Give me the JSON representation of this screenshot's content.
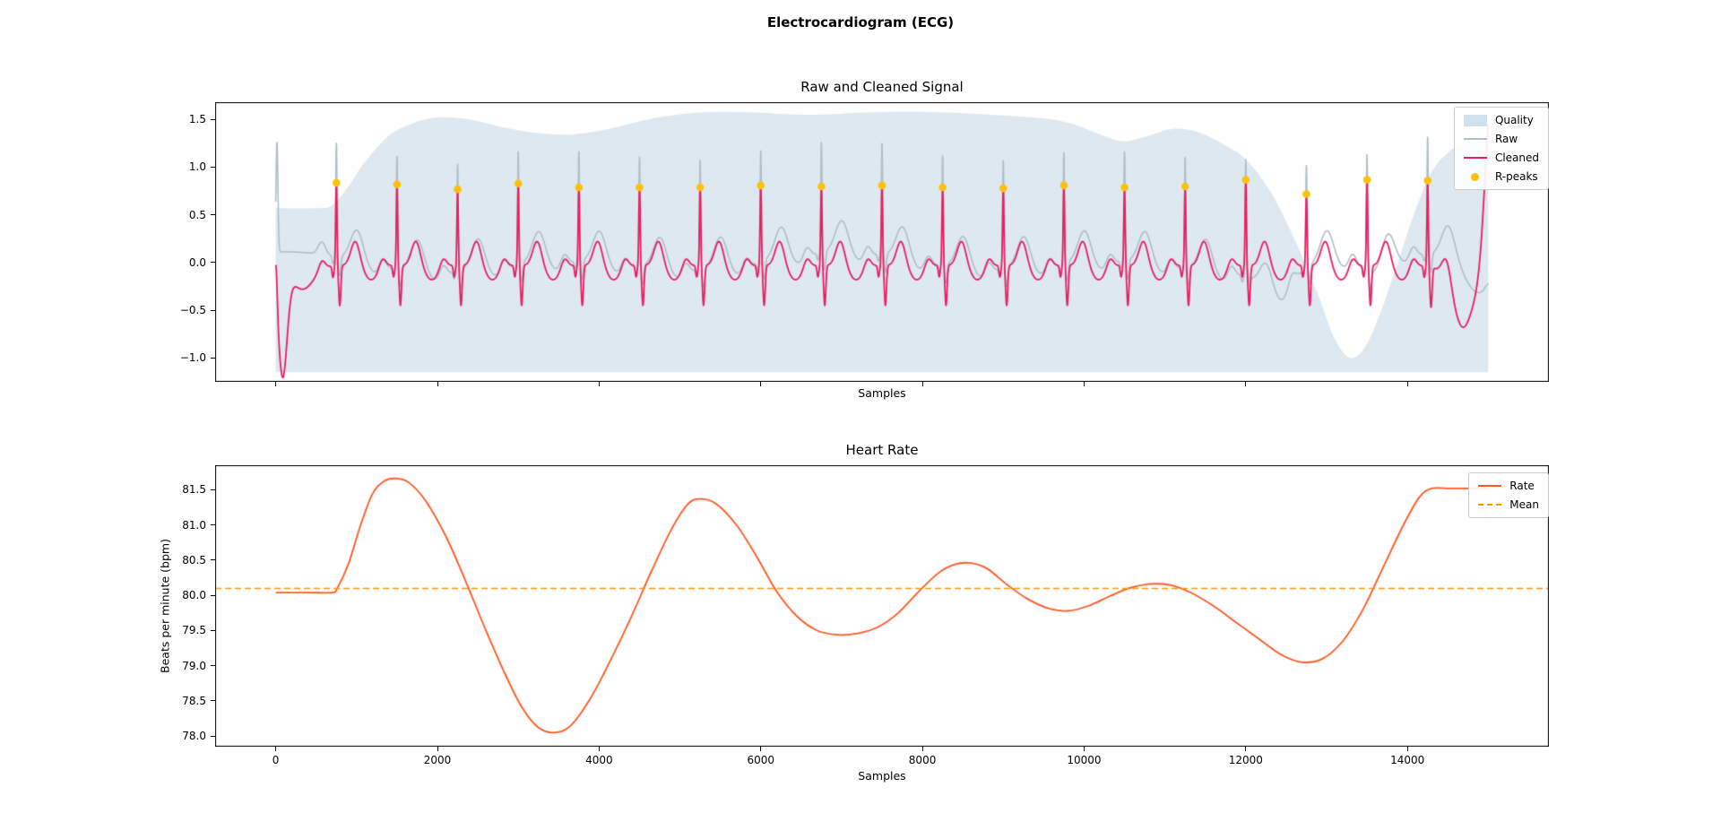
{
  "figure": {
    "suptitle": "Electrocardiogram (ECG)",
    "background_color": "#ffffff"
  },
  "chart_data": [
    {
      "type": "line",
      "title": "Raw and Cleaned Signal",
      "xlabel": "Samples",
      "ylabel": "",
      "xlim": [
        -750,
        15750
      ],
      "ylim": [
        -1.25,
        1.68
      ],
      "yticks": [
        1.5,
        1.0,
        0.5,
        0.0,
        -0.5,
        -1.0
      ],
      "ytick_labels": [
        "1.5",
        "1.0",
        "0.5",
        "0.0",
        "−0.5",
        "−1.0"
      ],
      "xticks": [
        0,
        2000,
        4000,
        6000,
        8000,
        10000,
        12000,
        14000
      ],
      "show_xtick_labels": false,
      "grid": false,
      "legend_position": "upper right",
      "legend": [
        {
          "label": "Quality",
          "type": "patch",
          "color": "rgba(70,130,180,0.25)"
        },
        {
          "label": "Raw",
          "type": "line",
          "color": "#B0BEC5"
        },
        {
          "label": "Cleaned",
          "type": "line",
          "color": "#E91E63"
        },
        {
          "label": "R-peaks",
          "type": "marker",
          "color": "#FFC107"
        }
      ],
      "colors": {
        "raw": "#B0BEC5",
        "cleaned": "#E91E63",
        "rpeaks": "#FFC107"
      },
      "quality": {
        "fill_color": "rgba(70,130,180,0.18)",
        "fill_bottom": -1.15,
        "x": [
          0,
          500,
          700,
          900,
          1100,
          1400,
          1700,
          2000,
          2400,
          2800,
          3200,
          3600,
          4000,
          4400,
          4800,
          5200,
          5600,
          6000,
          6400,
          6800,
          7200,
          7600,
          8000,
          8400,
          8800,
          9200,
          9600,
          9900,
          10200,
          10500,
          10800,
          11100,
          11400,
          11700,
          12000,
          12300,
          12600,
          12900,
          13100,
          13300,
          13500,
          13700,
          13900,
          14100,
          14300,
          14500,
          14700,
          15000
        ],
        "y": [
          0.57,
          0.57,
          0.6,
          0.8,
          1.05,
          1.33,
          1.46,
          1.52,
          1.5,
          1.42,
          1.36,
          1.34,
          1.38,
          1.46,
          1.53,
          1.57,
          1.58,
          1.57,
          1.55,
          1.55,
          1.57,
          1.58,
          1.58,
          1.57,
          1.55,
          1.53,
          1.5,
          1.44,
          1.34,
          1.27,
          1.33,
          1.4,
          1.37,
          1.25,
          1.08,
          0.75,
          0.25,
          -0.35,
          -0.8,
          -1.0,
          -0.85,
          -0.45,
          0.05,
          0.55,
          0.95,
          1.15,
          1.24,
          1.27
        ]
      },
      "ecg": {
        "sampling_rate": 1000,
        "n_samples": 15000,
        "r_sigma": 8,
        "r_peaks": [
          750,
          1500,
          2250,
          3000,
          3750,
          4500,
          5250,
          6000,
          6750,
          7500,
          8250,
          9000,
          9750,
          10500,
          11250,
          12000,
          12750,
          13500,
          14250
        ],
        "r_amplitudes": [
          0.87,
          0.85,
          0.8,
          0.86,
          0.82,
          0.82,
          0.82,
          0.84,
          0.83,
          0.84,
          0.82,
          0.81,
          0.84,
          0.82,
          0.83,
          0.9,
          0.75,
          0.9,
          0.9
        ],
        "cleaned_offset": -0.03,
        "cleaned_waves": [
          [
            -180,
            40,
            0.1
          ],
          [
            -42,
            11,
            -0.12
          ],
          [
            42,
            13,
            -0.42
          ],
          [
            235,
            55,
            0.26
          ],
          [
            430,
            85,
            -0.15
          ]
        ],
        "cleaned_extras": [
          [
            85,
            55,
            -1.12
          ],
          [
            5,
            15,
            0.38
          ],
          [
            330,
            140,
            -0.25
          ],
          [
            14700,
            160,
            -0.5
          ],
          [
            15035,
            75,
            1.75
          ]
        ],
        "raw_r_extra": 0.32,
        "raw_waves": [
          [
            -180,
            45,
            0.13
          ],
          [
            -42,
            12,
            -0.08
          ],
          [
            40,
            14,
            -0.2
          ],
          [
            255,
            80,
            0.33
          ],
          [
            480,
            110,
            -0.1
          ]
        ],
        "raw_extras": [
          [
            15,
            12,
            1.15
          ],
          [
            12350,
            180,
            -0.28
          ],
          [
            13600,
            150,
            -0.22
          ],
          [
            14900,
            130,
            -0.3
          ]
        ],
        "raw_wander": [
          [
            0.07,
            3400,
            1.2
          ],
          [
            0.05,
            7600,
            2.0
          ]
        ]
      }
    },
    {
      "type": "line",
      "title": "Heart Rate",
      "xlabel": "Samples",
      "ylabel": "Beats per minute (bpm)",
      "xlim": [
        -750,
        15750
      ],
      "ylim": [
        77.85,
        81.85
      ],
      "yticks": [
        78.0,
        78.5,
        79.0,
        79.5,
        80.0,
        80.5,
        81.0,
        81.5
      ],
      "ytick_labels": [
        "78.0",
        "78.5",
        "79.0",
        "79.5",
        "80.0",
        "80.5",
        "81.0",
        "81.5"
      ],
      "xticks": [
        0,
        2000,
        4000,
        6000,
        8000,
        10000,
        12000,
        14000
      ],
      "xtick_labels": [
        "0",
        "2000",
        "4000",
        "6000",
        "8000",
        "10000",
        "12000",
        "14000"
      ],
      "show_xtick_labels": true,
      "grid": false,
      "legend_position": "upper right",
      "legend": [
        {
          "label": "Rate",
          "type": "line",
          "color": "#FF5722"
        },
        {
          "label": "Mean",
          "type": "dashed",
          "color": "#FF9800"
        }
      ],
      "mean": {
        "label": "Mean",
        "value": 80.1,
        "color": "#FF9800",
        "style": "dashed"
      },
      "series": [
        {
          "name": "Rate",
          "color": "#FF5722",
          "x": [
            0,
            400,
            700,
            760,
            900,
            1050,
            1200,
            1350,
            1500,
            1650,
            1850,
            2100,
            2350,
            2600,
            2850,
            3050,
            3250,
            3450,
            3650,
            3900,
            4150,
            4400,
            4650,
            4900,
            5100,
            5250,
            5450,
            5700,
            5950,
            6200,
            6450,
            6700,
            6950,
            7200,
            7450,
            7700,
            7950,
            8200,
            8400,
            8600,
            8800,
            9050,
            9300,
            9550,
            9800,
            10050,
            10300,
            10550,
            10800,
            11050,
            11300,
            11600,
            11900,
            12200,
            12450,
            12700,
            12950,
            13200,
            13450,
            13700,
            13950,
            14150,
            14300,
            14500,
            15000
          ],
          "y": [
            80.04,
            80.04,
            80.04,
            80.1,
            80.45,
            81.0,
            81.45,
            81.63,
            81.66,
            81.6,
            81.35,
            80.85,
            80.2,
            79.5,
            78.85,
            78.4,
            78.12,
            78.05,
            78.15,
            78.55,
            79.1,
            79.7,
            80.35,
            80.95,
            81.3,
            81.37,
            81.3,
            81.0,
            80.55,
            80.05,
            79.7,
            79.5,
            79.44,
            79.46,
            79.55,
            79.75,
            80.05,
            80.32,
            80.44,
            80.46,
            80.38,
            80.15,
            79.95,
            79.82,
            79.78,
            79.85,
            79.98,
            80.1,
            80.16,
            80.15,
            80.05,
            79.85,
            79.6,
            79.35,
            79.15,
            79.05,
            79.1,
            79.35,
            79.8,
            80.4,
            81.0,
            81.4,
            81.52,
            81.52,
            81.52
          ]
        }
      ]
    }
  ]
}
